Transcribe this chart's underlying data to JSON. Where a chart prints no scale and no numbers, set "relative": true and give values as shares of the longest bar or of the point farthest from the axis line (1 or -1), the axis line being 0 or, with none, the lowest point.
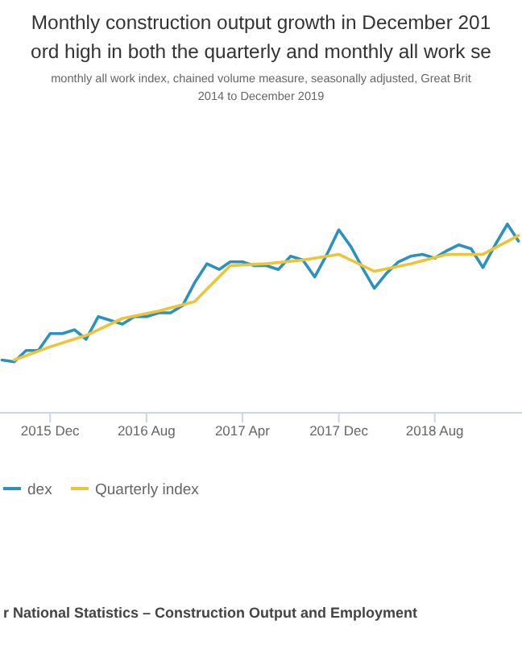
{
  "chart_data": {
    "type": "line",
    "title": "Monthly construction output growth in December 201\nord high in both the quarterly and monthly all work se",
    "subtitle": "monthly all work index, chained volume measure, seasonally adjusted, Great Brit\n2014 to December 2019",
    "relative": true,
    "xlim": [
      "2015-07-27",
      "2019-03-10"
    ],
    "xticks": [
      {
        "value": "2015-12",
        "label": "2015 Dec"
      },
      {
        "value": "2016-08",
        "label": "2016 Aug"
      },
      {
        "value": "2017-04",
        "label": "2017 Apr"
      },
      {
        "value": "2017-12",
        "label": "2017 Dec"
      },
      {
        "value": "2018-08",
        "label": "2018 Aug"
      }
    ],
    "series": [
      {
        "name": "dex",
        "color": "#2b91be",
        "x": [
          "2015-08",
          "2015-09",
          "2015-10",
          "2015-11",
          "2015-12",
          "2016-01",
          "2016-02",
          "2016-03",
          "2016-04",
          "2016-05",
          "2016-06",
          "2016-07",
          "2016-08",
          "2016-09",
          "2016-10",
          "2016-11",
          "2016-12",
          "2017-01",
          "2017-02",
          "2017-03",
          "2017-04",
          "2017-05",
          "2017-06",
          "2017-07",
          "2017-08",
          "2017-09",
          "2017-10",
          "2017-11",
          "2017-12",
          "2018-01",
          "2018-02",
          "2018-03",
          "2018-04",
          "2018-05",
          "2018-06",
          "2018-07",
          "2018-08",
          "2018-09",
          "2018-10",
          "2018-11",
          "2018-12",
          "2019-01",
          "2019-02",
          "2019-03"
        ],
        "values": [
          0.28,
          0.27,
          0.33,
          0.33,
          0.42,
          0.42,
          0.44,
          0.39,
          0.51,
          0.49,
          0.47,
          0.51,
          0.51,
          0.53,
          0.53,
          0.57,
          0.69,
          0.79,
          0.76,
          0.8,
          0.8,
          0.78,
          0.78,
          0.76,
          0.83,
          0.81,
          0.72,
          0.84,
          0.97,
          0.88,
          0.76,
          0.66,
          0.74,
          0.8,
          0.83,
          0.84,
          0.82,
          0.86,
          0.89,
          0.87,
          0.77,
          0.89,
          1,
          0.91
        ]
      },
      {
        "name": "Quarterly index",
        "color": "#eec437",
        "x": [
          "2015-09",
          "2015-12",
          "2016-03",
          "2016-06",
          "2016-09",
          "2016-12",
          "2017-03",
          "2017-06",
          "2017-09",
          "2017-12",
          "2018-03",
          "2018-06",
          "2018-09",
          "2018-12",
          "2019-03"
        ],
        "values": [
          0.28,
          0.35,
          0.41,
          0.5,
          0.54,
          0.59,
          0.78,
          0.79,
          0.81,
          0.84,
          0.75,
          0.79,
          0.84,
          0.84,
          0.94
        ]
      }
    ],
    "legend": "bottom",
    "annotations": [
      "r National Statistics – Construction Output and Employment"
    ]
  }
}
